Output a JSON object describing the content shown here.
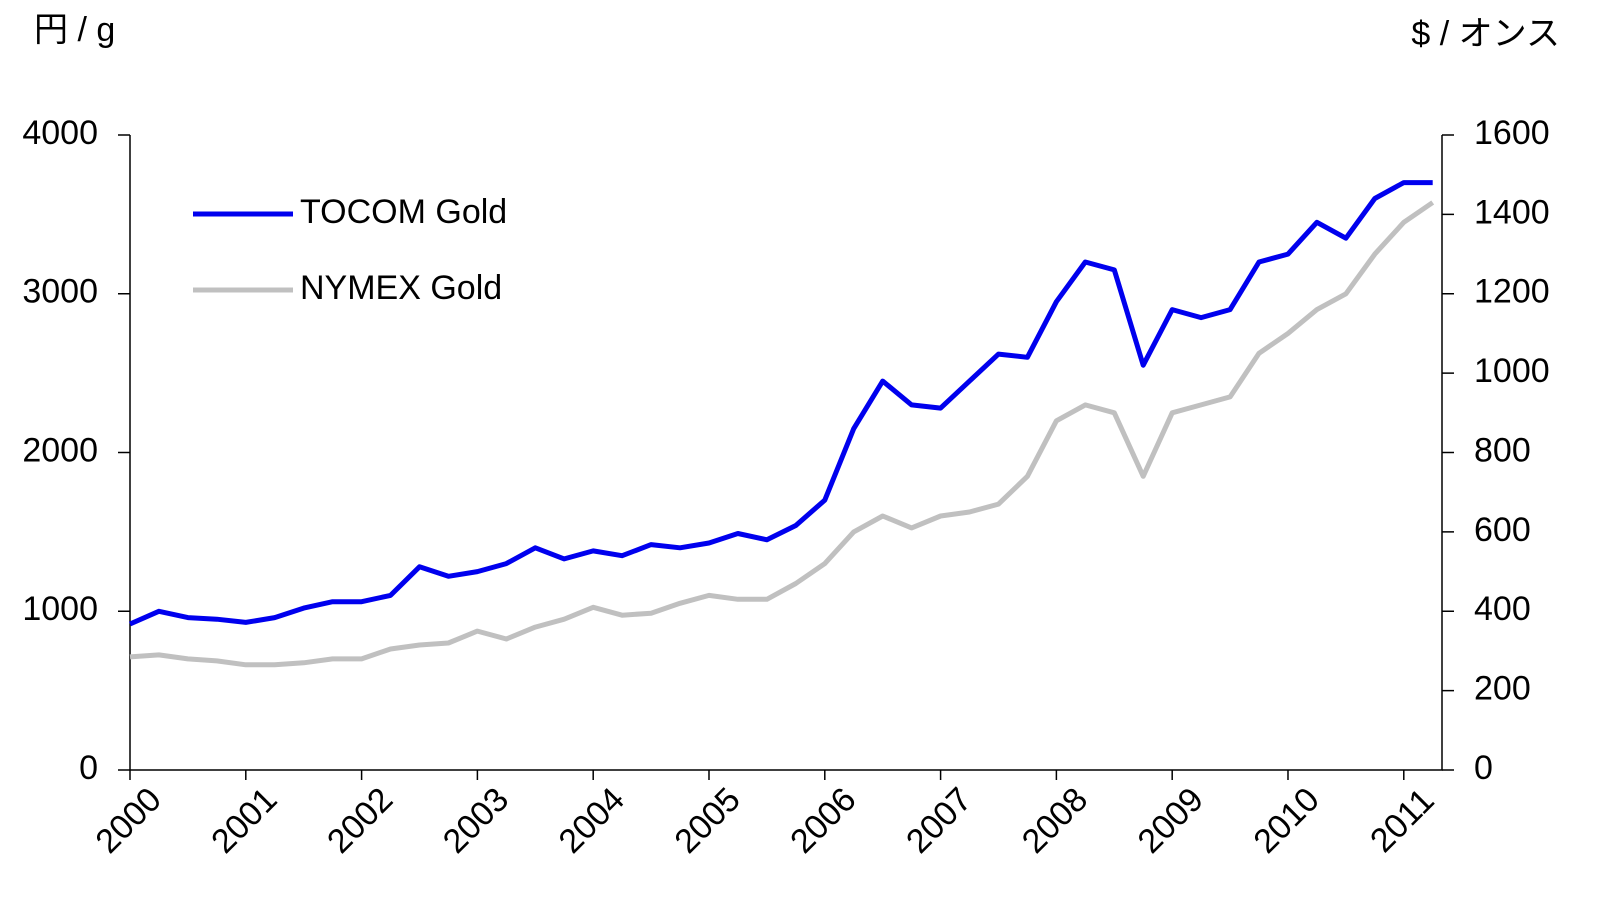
{
  "chart_data": {
    "type": "line",
    "y_label": "円 / g",
    "y2_label": "$ / オンス",
    "x": [
      2000,
      2000.25,
      2000.5,
      2000.75,
      2001,
      2001.25,
      2001.5,
      2001.75,
      2002,
      2002.25,
      2002.5,
      2002.75,
      2003,
      2003.25,
      2003.5,
      2003.75,
      2004,
      2004.25,
      2004.5,
      2004.75,
      2005,
      2005.25,
      2005.5,
      2005.75,
      2006,
      2006.25,
      2006.5,
      2006.75,
      2007,
      2007.25,
      2007.5,
      2007.75,
      2008,
      2008.25,
      2008.5,
      2008.75,
      2009,
      2009.25,
      2009.5,
      2009.75,
      2010,
      2010.25,
      2010.5,
      2010.75,
      2011,
      2011.25
    ],
    "series": [
      {
        "name": "TOCOM Gold",
        "color": "#0000ee",
        "values": [
          920,
          1000,
          960,
          950,
          930,
          960,
          1020,
          1060,
          1060,
          1100,
          1280,
          1220,
          1250,
          1300,
          1400,
          1330,
          1380,
          1350,
          1420,
          1400,
          1430,
          1490,
          1450,
          1540,
          1700,
          2150,
          2450,
          2300,
          2280,
          2450,
          2620,
          2600,
          2950,
          3200,
          3150,
          2550,
          2900,
          2850,
          2900,
          3200,
          3250,
          3450,
          3350,
          3600,
          3700,
          3700
        ]
      },
      {
        "name": "NYMEX Gold",
        "color": "#c0c0c0",
        "axis": "y2",
        "values": [
          285,
          290,
          280,
          275,
          265,
          265,
          270,
          280,
          280,
          305,
          315,
          320,
          350,
          330,
          360,
          380,
          410,
          390,
          395,
          420,
          440,
          430,
          430,
          470,
          520,
          600,
          640,
          610,
          640,
          650,
          670,
          740,
          880,
          920,
          900,
          740,
          900,
          920,
          940,
          1050,
          1100,
          1160,
          1200,
          1300,
          1380,
          1430
        ]
      }
    ],
    "xlim": [
      2000,
      2011.33
    ],
    "xticks": [
      2000,
      2001,
      2002,
      2003,
      2004,
      2005,
      2006,
      2007,
      2008,
      2009,
      2010,
      2011
    ],
    "ylim": [
      0,
      4000
    ],
    "yticks": [
      0,
      1000,
      2000,
      3000,
      4000
    ],
    "y2lim": [
      0,
      1600
    ],
    "y2ticks": [
      0,
      200,
      400,
      600,
      800,
      1000,
      1200,
      1400,
      1600
    ],
    "legend": "upper-left"
  }
}
